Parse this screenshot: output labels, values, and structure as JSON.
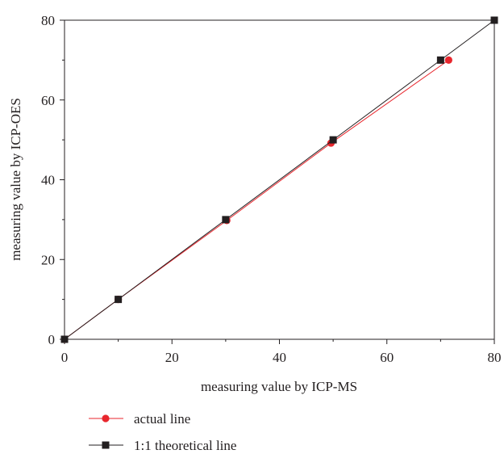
{
  "chart_data": {
    "type": "line",
    "xlabel": "measuring value by ICP-MS",
    "ylabel": "measuring value by ICP-OES",
    "xlim": [
      0,
      80
    ],
    "ylim": [
      0,
      80
    ],
    "xticks": [
      "0",
      "20",
      "40",
      "60",
      "80"
    ],
    "yticks": [
      "0",
      "20",
      "40",
      "60",
      "80"
    ],
    "grid": false,
    "legend_position": "bottom-left",
    "series": [
      {
        "name": "actual line",
        "color": "#e8262d",
        "marker": "circle",
        "x": [
          0,
          10,
          30.2,
          49.6,
          71.5
        ],
        "y": [
          0,
          10,
          29.8,
          49.2,
          70
        ]
      },
      {
        "name": "1:1 theoretical line",
        "color": "#231f20",
        "marker": "square",
        "x": [
          0,
          10,
          30,
          50,
          70,
          80
        ],
        "y": [
          0,
          10,
          30,
          50,
          70,
          80
        ]
      }
    ]
  }
}
